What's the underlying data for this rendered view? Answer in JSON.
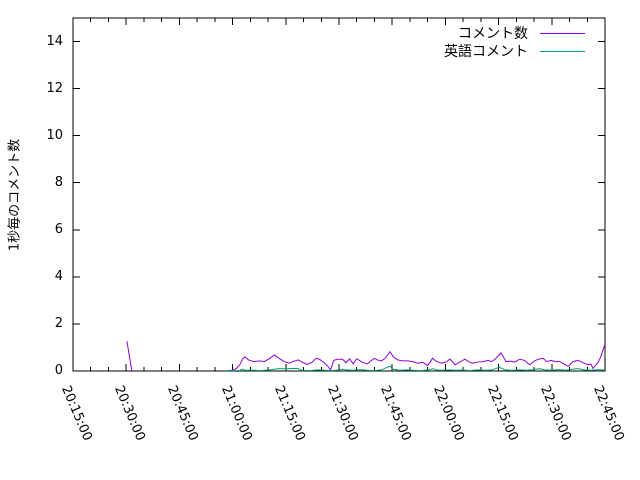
{
  "colors": {
    "background": "#ffffff",
    "axis": "#000000",
    "text": "#000000",
    "series1": "#9400d3",
    "series2": "#009e73"
  },
  "chart_data": {
    "type": "line",
    "title": "",
    "xlabel": "",
    "ylabel": "1秒毎のコメント数",
    "ylim": [
      0,
      15
    ],
    "yticks": [
      0,
      2,
      4,
      6,
      8,
      10,
      12,
      14
    ],
    "grid": false,
    "legend_position": "top-right",
    "x_axis": {
      "unit": "time (HH:MM:SS), minutes counted from 20:00",
      "range_minutes": [
        15,
        165
      ],
      "tick_minutes": [
        15,
        30,
        45,
        60,
        75,
        90,
        105,
        120,
        135,
        150,
        165
      ],
      "tick_labels": [
        "20:15:00",
        "20:30:00",
        "20:45:00",
        "21:00:00",
        "21:15:00",
        "21:30:00",
        "21:45:00",
        "22:00:00",
        "22:15:00",
        "22:30:00",
        "22:45:00"
      ],
      "minor_tick_interval_minutes": 5,
      "label_rotation_deg": 67
    },
    "series": [
      {
        "name": "コメント数",
        "color": "#9400d3",
        "segments": [
          [
            [
              30.2,
              1.27
            ],
            [
              31.6,
              0
            ]
          ],
          [
            [
              58,
              0
            ],
            [
              59,
              0.02
            ],
            [
              60,
              0.04
            ],
            [
              61,
              0.1
            ],
            [
              62,
              0.26
            ],
            [
              63,
              0.55
            ],
            [
              63.5,
              0.6
            ],
            [
              64.5,
              0.47
            ],
            [
              66,
              0.4
            ],
            [
              67.5,
              0.43
            ],
            [
              69,
              0.4
            ],
            [
              70.5,
              0.54
            ],
            [
              71.8,
              0.68
            ],
            [
              73,
              0.55
            ],
            [
              74.5,
              0.4
            ],
            [
              76,
              0.33
            ],
            [
              77,
              0.4
            ],
            [
              78.5,
              0.47
            ],
            [
              80,
              0.35
            ],
            [
              81,
              0.28
            ],
            [
              82.5,
              0.38
            ],
            [
              83.5,
              0.54
            ],
            [
              84.5,
              0.5
            ],
            [
              86,
              0.33
            ],
            [
              87,
              0.18
            ],
            [
              87.6,
              0.04
            ],
            [
              88.5,
              0.45
            ],
            [
              89.5,
              0.5
            ],
            [
              91,
              0.5
            ],
            [
              92,
              0.35
            ],
            [
              93,
              0.52
            ],
            [
              94,
              0.3
            ],
            [
              95,
              0.52
            ],
            [
              96.5,
              0.38
            ],
            [
              98,
              0.3
            ],
            [
              99,
              0.43
            ],
            [
              100,
              0.54
            ],
            [
              100.8,
              0.47
            ],
            [
              102,
              0.43
            ],
            [
              103,
              0.54
            ],
            [
              104.4,
              0.82
            ],
            [
              105.3,
              0.6
            ],
            [
              106.6,
              0.47
            ],
            [
              108,
              0.43
            ],
            [
              109.4,
              0.43
            ],
            [
              110.8,
              0.4
            ],
            [
              112.2,
              0.33
            ],
            [
              113.6,
              0.37
            ],
            [
              115,
              0.23
            ],
            [
              116.4,
              0.54
            ],
            [
              117.5,
              0.4
            ],
            [
              119,
              0.33
            ],
            [
              120.4,
              0.4
            ],
            [
              121.3,
              0.51
            ],
            [
              122.7,
              0.26
            ],
            [
              124,
              0.38
            ],
            [
              125.5,
              0.5
            ],
            [
              126.8,
              0.38
            ],
            [
              127.8,
              0.33
            ],
            [
              129,
              0.38
            ],
            [
              130.6,
              0.4
            ],
            [
              132,
              0.45
            ],
            [
              133,
              0.4
            ],
            [
              134,
              0.5
            ],
            [
              135.7,
              0.77
            ],
            [
              137.1,
              0.4
            ],
            [
              138.5,
              0.42
            ],
            [
              139.5,
              0.38
            ],
            [
              141,
              0.5
            ],
            [
              142.3,
              0.45
            ],
            [
              143.8,
              0.26
            ],
            [
              145,
              0.42
            ],
            [
              146.2,
              0.5
            ],
            [
              147.5,
              0.54
            ],
            [
              148.6,
              0.4
            ],
            [
              149.8,
              0.45
            ],
            [
              151,
              0.4
            ],
            [
              152.3,
              0.4
            ],
            [
              153.4,
              0.3
            ],
            [
              154.6,
              0.2
            ],
            [
              156,
              0.4
            ],
            [
              157.4,
              0.45
            ],
            [
              158.6,
              0.37
            ],
            [
              160.2,
              0.26
            ],
            [
              161,
              0.3
            ],
            [
              161.6,
              0.11
            ],
            [
              163,
              0.35
            ],
            [
              163.8,
              0.6
            ],
            [
              165,
              1.15
            ]
          ]
        ]
      },
      {
        "name": "英語コメント",
        "color": "#009e73",
        "segments": [
          [
            [
              58,
              0.02
            ],
            [
              62,
              0.02
            ],
            [
              62.8,
              0.08
            ],
            [
              63.6,
              0.03
            ],
            [
              66,
              0.03
            ],
            [
              68,
              0.02
            ],
            [
              70,
              0.04
            ],
            [
              72,
              0.08
            ],
            [
              73,
              0.1
            ],
            [
              75,
              0.09
            ],
            [
              77,
              0.11
            ],
            [
              78.5,
              0.1
            ],
            [
              79.5,
              0.03
            ],
            [
              82,
              0.02
            ],
            [
              84,
              0.05
            ],
            [
              86,
              0.03
            ],
            [
              88,
              0.02
            ],
            [
              90,
              0.04
            ],
            [
              91,
              0.08
            ],
            [
              92,
              0.04
            ],
            [
              94,
              0.03
            ],
            [
              96,
              0.06
            ],
            [
              98,
              0.03
            ],
            [
              100,
              0.02
            ],
            [
              102,
              0.05
            ],
            [
              103.6,
              0.16
            ],
            [
              104.4,
              0.2
            ],
            [
              105.2,
              0.08
            ],
            [
              107,
              0.03
            ],
            [
              109,
              0.05
            ],
            [
              111,
              0.03
            ],
            [
              113,
              0.02
            ],
            [
              115,
              0.04
            ],
            [
              116.4,
              0.1
            ],
            [
              117.5,
              0.04
            ],
            [
              119,
              0.03
            ],
            [
              121,
              0.05
            ],
            [
              123,
              0.03
            ],
            [
              125,
              0.04
            ],
            [
              127,
              0.02
            ],
            [
              129,
              0.05
            ],
            [
              131,
              0.03
            ],
            [
              133,
              0.04
            ],
            [
              135.3,
              0.16
            ],
            [
              136,
              0.1
            ],
            [
              137,
              0.04
            ],
            [
              139,
              0.03
            ],
            [
              141,
              0.05
            ],
            [
              143,
              0.03
            ],
            [
              145,
              0.06
            ],
            [
              146.5,
              0.1
            ],
            [
              148,
              0.05
            ],
            [
              150,
              0.03
            ],
            [
              152,
              0.06
            ],
            [
              154,
              0.03
            ],
            [
              156,
              0.08
            ],
            [
              157.5,
              0.1
            ],
            [
              159,
              0.05
            ],
            [
              161,
              0.03
            ],
            [
              163,
              0.06
            ],
            [
              165,
              0.04
            ]
          ]
        ]
      }
    ]
  }
}
